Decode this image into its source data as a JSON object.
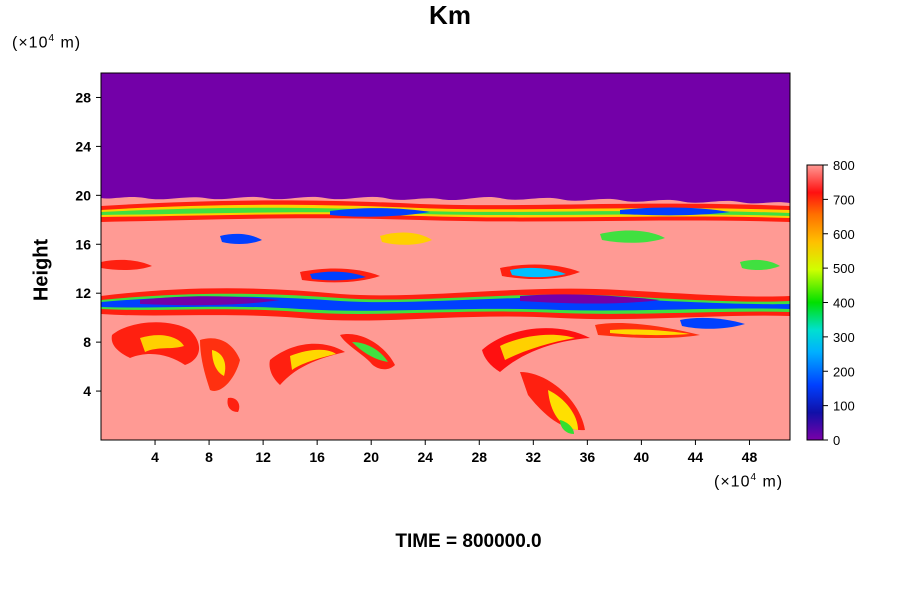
{
  "chart_data": {
    "type": "heatmap",
    "title": "Km",
    "ylabel": "Height",
    "xlabel": "",
    "y_unit": "(×10⁴ m)",
    "x_unit": "(×10⁴ m)",
    "footer": "TIME = 800000.0",
    "xlim": [
      0,
      51
    ],
    "ylim": [
      0,
      30
    ],
    "x_ticks": [
      4,
      8,
      12,
      16,
      20,
      24,
      28,
      32,
      36,
      40,
      44,
      48
    ],
    "y_ticks": [
      4,
      8,
      12,
      16,
      20,
      24,
      28
    ],
    "colorbar": {
      "range": [
        0,
        800
      ],
      "ticks": [
        0,
        100,
        200,
        300,
        400,
        500,
        600,
        700,
        800
      ]
    },
    "colors": {
      "top_layer": "#7300a8",
      "bulk": "#ff9a94"
    },
    "regions": [
      {
        "layer": "upper-uniform",
        "y_range": [
          19.8,
          30
        ],
        "value": 0
      },
      {
        "layer": "turbulent-band",
        "y_range": [
          10,
          19.8
        ],
        "value_range": [
          0,
          800
        ]
      },
      {
        "layer": "lower-boundary",
        "y_range": [
          0,
          10
        ],
        "value_range": [
          600,
          800
        ]
      }
    ]
  }
}
